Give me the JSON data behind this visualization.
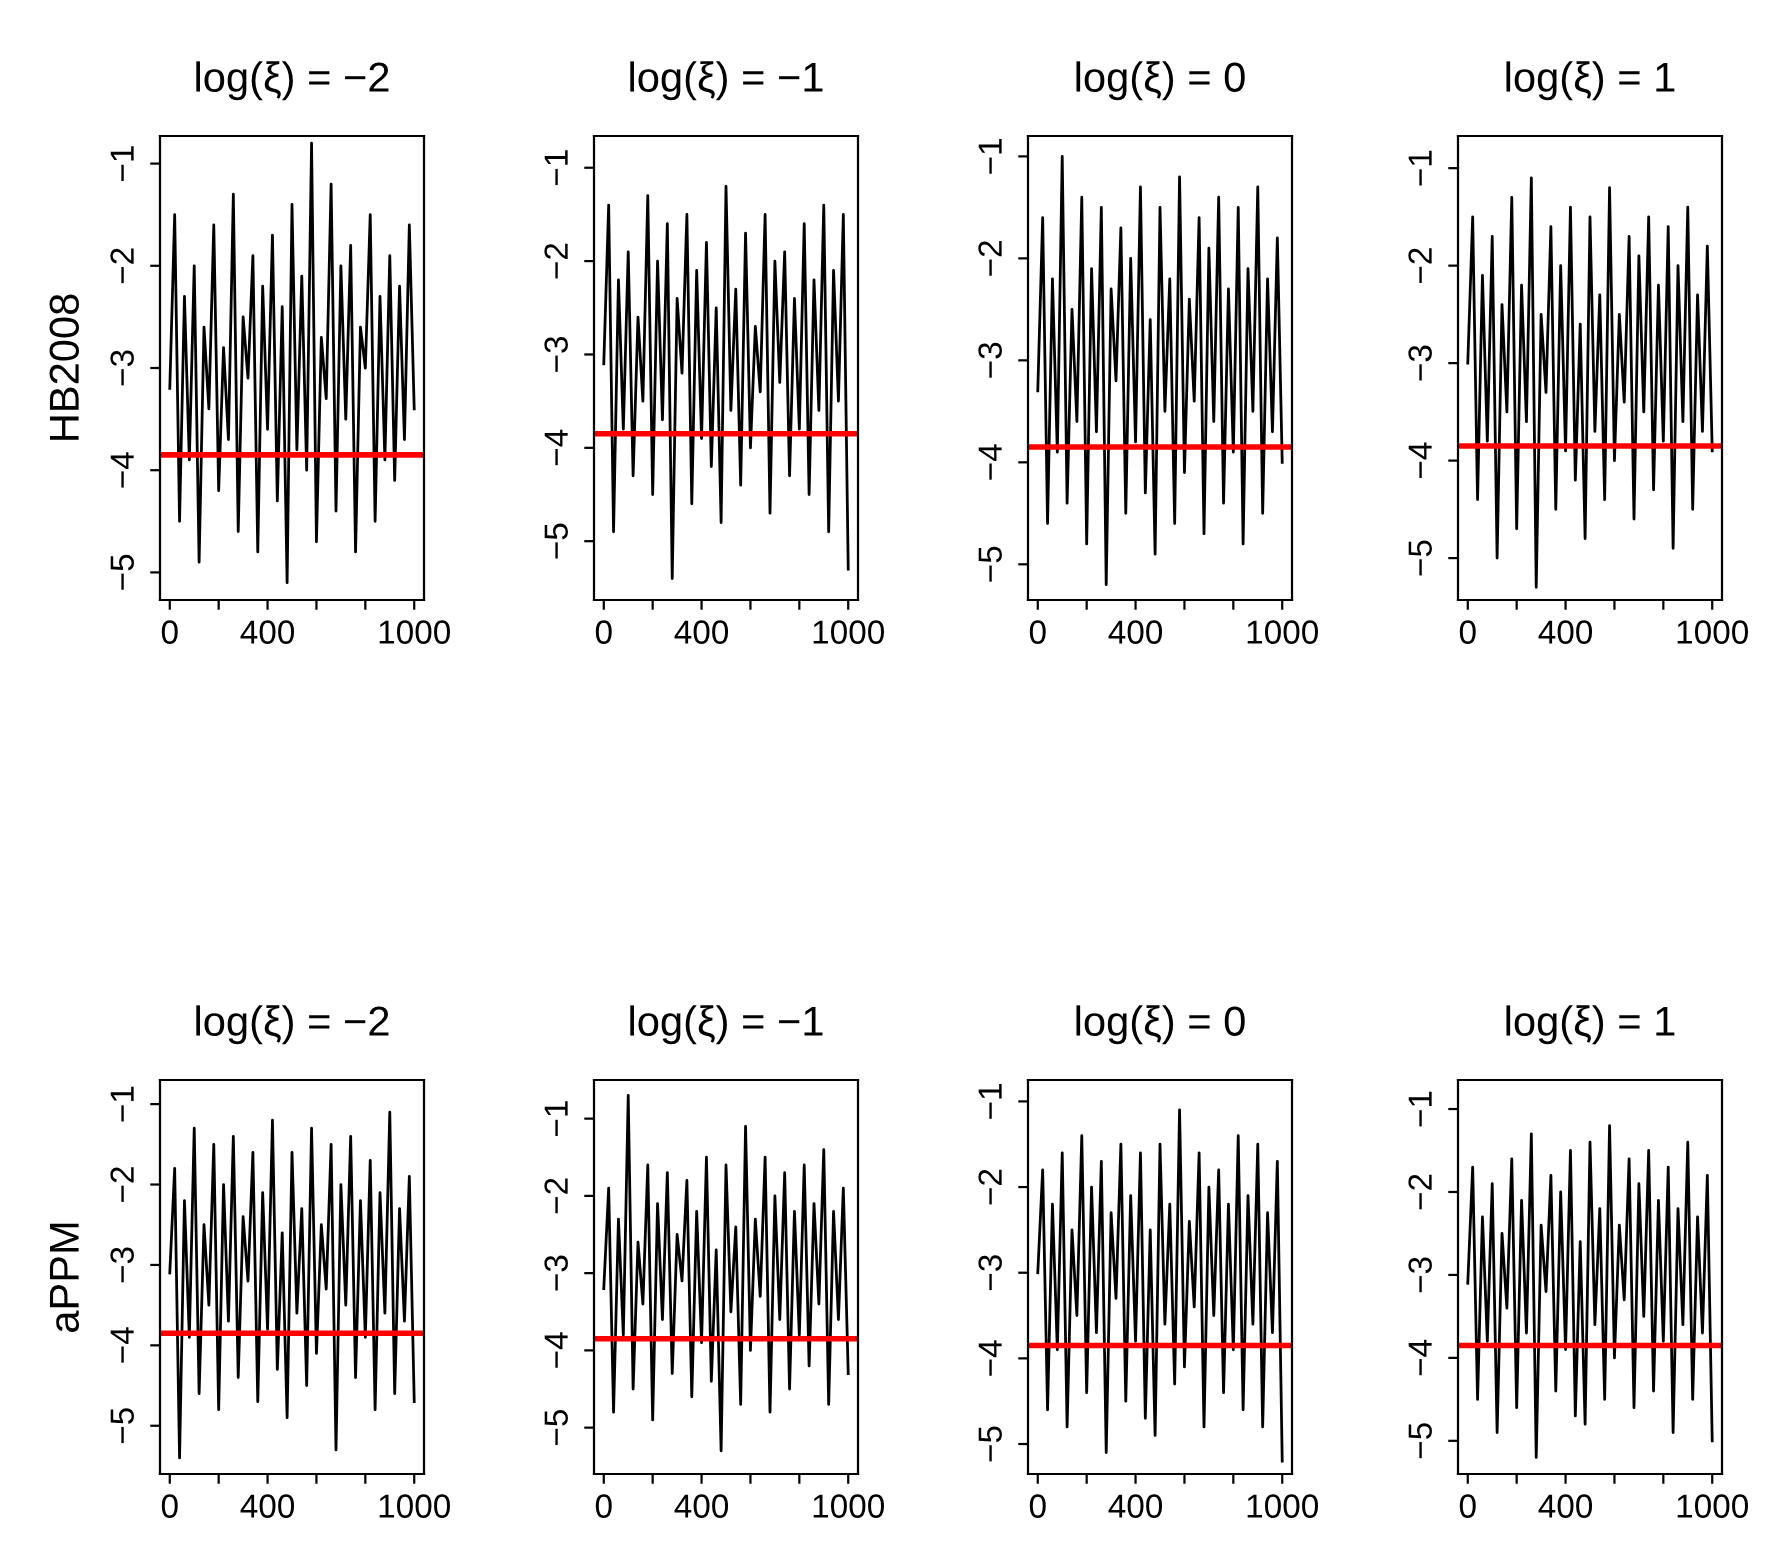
{
  "chart_data": [
    {
      "type": "line",
      "title": "log(ξ) = −2",
      "ylabel": "HB2008",
      "xlim": [
        -40,
        1040
      ],
      "ylim": [
        -5.27,
        -0.73
      ],
      "xticks": [
        0,
        {
          "value": 200,
          "label": null
        },
        400,
        {
          "value": 600,
          "label": null
        },
        {
          "value": 800,
          "label": null
        },
        1000
      ],
      "yticks": [
        -5,
        -4,
        -3,
        -2,
        -1
      ],
      "grid": false,
      "x": [
        0,
        20,
        40,
        60,
        80,
        100,
        120,
        140,
        160,
        180,
        200,
        220,
        240,
        260,
        280,
        300,
        320,
        340,
        360,
        380,
        400,
        420,
        440,
        460,
        480,
        500,
        520,
        540,
        560,
        580,
        600,
        620,
        640,
        660,
        680,
        700,
        720,
        740,
        760,
        780,
        800,
        820,
        840,
        860,
        880,
        900,
        920,
        940,
        960,
        980,
        1000
      ],
      "series": [
        {
          "color": "#000000",
          "values": [
            -3.2,
            -1.5,
            -4.5,
            -2.3,
            -3.9,
            -2.0,
            -4.9,
            -2.6,
            -3.4,
            -1.6,
            -4.2,
            -2.8,
            -3.7,
            -1.3,
            -4.6,
            -2.5,
            -3.1,
            -1.9,
            -4.8,
            -2.2,
            -3.6,
            -1.7,
            -4.3,
            -2.4,
            -5.1,
            -1.4,
            -3.8,
            -2.1,
            -4.0,
            -0.8,
            -4.7,
            -2.7,
            -3.3,
            -1.2,
            -4.4,
            -2.0,
            -3.5,
            -1.8,
            -4.8,
            -2.6,
            -3.0,
            -1.5,
            -4.5,
            -2.3,
            -3.9,
            -1.9,
            -4.1,
            -2.2,
            -3.7,
            -1.6,
            -3.4
          ]
        }
      ],
      "ref_lines": [
        {
          "axis": "y",
          "value": -3.85,
          "color": "#ff0000"
        }
      ]
    },
    {
      "type": "line",
      "title": "log(ξ) = −1",
      "xlim": [
        -40,
        1040
      ],
      "ylim": [
        -5.63,
        -0.66
      ],
      "xticks": [
        0,
        {
          "value": 200,
          "label": null
        },
        400,
        {
          "value": 600,
          "label": null
        },
        {
          "value": 800,
          "label": null
        },
        1000
      ],
      "yticks": [
        -5,
        -4,
        -3,
        -2,
        -1
      ],
      "grid": false,
      "x": [
        0,
        20,
        40,
        60,
        80,
        100,
        120,
        140,
        160,
        180,
        200,
        220,
        240,
        260,
        280,
        300,
        320,
        340,
        360,
        380,
        400,
        420,
        440,
        460,
        480,
        500,
        520,
        540,
        560,
        580,
        600,
        620,
        640,
        660,
        680,
        700,
        720,
        740,
        760,
        780,
        800,
        820,
        840,
        860,
        880,
        900,
        920,
        940,
        960,
        980,
        1000
      ],
      "series": [
        {
          "color": "#000000",
          "values": [
            -3.1,
            -1.4,
            -4.9,
            -2.2,
            -3.8,
            -1.9,
            -4.3,
            -2.6,
            -3.5,
            -1.3,
            -4.5,
            -2.0,
            -3.7,
            -1.6,
            -5.4,
            -2.4,
            -3.2,
            -1.5,
            -4.6,
            -2.1,
            -3.9,
            -1.8,
            -4.2,
            -2.5,
            -4.8,
            -1.2,
            -3.6,
            -2.3,
            -4.4,
            -1.7,
            -4.0,
            -2.7,
            -3.4,
            -1.5,
            -4.7,
            -2.0,
            -3.3,
            -1.9,
            -4.3,
            -2.4,
            -3.8,
            -1.6,
            -4.5,
            -2.2,
            -3.6,
            -1.4,
            -4.9,
            -2.1,
            -3.5,
            -1.5,
            -5.3
          ]
        }
      ],
      "ref_lines": [
        {
          "axis": "y",
          "value": -3.85,
          "color": "#ff0000"
        }
      ]
    },
    {
      "type": "line",
      "title": "log(ξ) = 0",
      "xlim": [
        -40,
        1040
      ],
      "ylim": [
        -5.35,
        -0.8
      ],
      "xticks": [
        0,
        {
          "value": 200,
          "label": null
        },
        400,
        {
          "value": 600,
          "label": null
        },
        {
          "value": 800,
          "label": null
        },
        1000
      ],
      "yticks": [
        -5,
        -4,
        -3,
        -2,
        -1
      ],
      "grid": false,
      "x": [
        0,
        20,
        40,
        60,
        80,
        100,
        120,
        140,
        160,
        180,
        200,
        220,
        240,
        260,
        280,
        300,
        320,
        340,
        360,
        380,
        400,
        420,
        440,
        460,
        480,
        500,
        520,
        540,
        560,
        580,
        600,
        620,
        640,
        660,
        680,
        700,
        720,
        740,
        760,
        780,
        800,
        820,
        840,
        860,
        880,
        900,
        920,
        940,
        960,
        980,
        1000
      ],
      "series": [
        {
          "color": "#000000",
          "values": [
            -3.3,
            -1.6,
            -4.6,
            -2.2,
            -3.9,
            -1.0,
            -4.4,
            -2.5,
            -3.6,
            -1.4,
            -4.8,
            -2.1,
            -3.7,
            -1.5,
            -5.2,
            -2.3,
            -3.2,
            -1.7,
            -4.5,
            -2.0,
            -3.8,
            -1.3,
            -4.3,
            -2.6,
            -4.9,
            -1.5,
            -3.5,
            -2.2,
            -4.6,
            -1.2,
            -4.1,
            -2.4,
            -3.4,
            -1.6,
            -4.7,
            -1.9,
            -3.6,
            -1.4,
            -4.4,
            -2.3,
            -3.9,
            -1.5,
            -4.8,
            -2.1,
            -3.5,
            -1.3,
            -4.5,
            -2.2,
            -3.7,
            -1.8,
            -4.0
          ]
        }
      ],
      "ref_lines": [
        {
          "axis": "y",
          "value": -3.85,
          "color": "#ff0000"
        }
      ]
    },
    {
      "type": "line",
      "title": "log(ξ) = 1",
      "xlim": [
        -40,
        1040
      ],
      "ylim": [
        -5.43,
        -0.67
      ],
      "xticks": [
        0,
        {
          "value": 200,
          "label": null
        },
        400,
        {
          "value": 600,
          "label": null
        },
        {
          "value": 800,
          "label": null
        },
        1000
      ],
      "yticks": [
        -5,
        -4,
        -3,
        -2,
        -1
      ],
      "grid": false,
      "x": [
        0,
        20,
        40,
        60,
        80,
        100,
        120,
        140,
        160,
        180,
        200,
        220,
        240,
        260,
        280,
        300,
        320,
        340,
        360,
        380,
        400,
        420,
        440,
        460,
        480,
        500,
        520,
        540,
        560,
        580,
        600,
        620,
        640,
        660,
        680,
        700,
        720,
        740,
        760,
        780,
        800,
        820,
        840,
        860,
        880,
        900,
        920,
        940,
        960,
        980,
        1000
      ],
      "series": [
        {
          "color": "#000000",
          "values": [
            -3.0,
            -1.5,
            -4.4,
            -2.1,
            -3.8,
            -1.7,
            -5.0,
            -2.4,
            -3.5,
            -1.3,
            -4.7,
            -2.2,
            -3.6,
            -1.1,
            -5.3,
            -2.5,
            -3.3,
            -1.6,
            -4.5,
            -2.0,
            -3.9,
            -1.4,
            -4.2,
            -2.6,
            -4.8,
            -1.5,
            -3.7,
            -2.3,
            -4.4,
            -1.2,
            -4.0,
            -2.5,
            -3.4,
            -1.7,
            -4.6,
            -1.9,
            -3.5,
            -1.5,
            -4.3,
            -2.2,
            -3.8,
            -1.6,
            -4.9,
            -2.0,
            -3.6,
            -1.4,
            -4.5,
            -2.3,
            -3.7,
            -1.8,
            -3.9
          ]
        }
      ],
      "ref_lines": [
        {
          "axis": "y",
          "value": -3.85,
          "color": "#ff0000"
        }
      ]
    },
    {
      "type": "line",
      "title": "log(ξ) = −2",
      "ylabel": "aPPM",
      "xlim": [
        -40,
        1040
      ],
      "ylim": [
        -5.6,
        -0.7
      ],
      "xticks": [
        0,
        {
          "value": 200,
          "label": null
        },
        400,
        {
          "value": 600,
          "label": null
        },
        {
          "value": 800,
          "label": null
        },
        1000
      ],
      "yticks": [
        -5,
        -4,
        -3,
        -2,
        -1
      ],
      "grid": false,
      "x": [
        0,
        20,
        40,
        60,
        80,
        100,
        120,
        140,
        160,
        180,
        200,
        220,
        240,
        260,
        280,
        300,
        320,
        340,
        360,
        380,
        400,
        420,
        440,
        460,
        480,
        500,
        520,
        540,
        560,
        580,
        600,
        620,
        640,
        660,
        680,
        700,
        720,
        740,
        760,
        780,
        800,
        820,
        840,
        860,
        880,
        900,
        920,
        940,
        960,
        980,
        1000
      ],
      "series": [
        {
          "color": "#000000",
          "values": [
            -3.1,
            -1.8,
            -5.4,
            -2.2,
            -3.9,
            -1.3,
            -4.6,
            -2.5,
            -3.5,
            -1.5,
            -4.8,
            -2.0,
            -3.7,
            -1.4,
            -4.4,
            -2.4,
            -3.2,
            -1.6,
            -4.7,
            -2.1,
            -3.8,
            -1.2,
            -4.3,
            -2.6,
            -4.9,
            -1.6,
            -3.6,
            -2.3,
            -4.5,
            -1.3,
            -4.1,
            -2.5,
            -3.3,
            -1.5,
            -5.3,
            -2.0,
            -3.5,
            -1.4,
            -4.4,
            -2.2,
            -3.9,
            -1.7,
            -4.8,
            -2.1,
            -3.6,
            -1.1,
            -4.6,
            -2.3,
            -3.7,
            -1.9,
            -4.7
          ]
        }
      ],
      "ref_lines": [
        {
          "axis": "y",
          "value": -3.85,
          "color": "#ff0000"
        }
      ]
    },
    {
      "type": "line",
      "title": "log(ξ) = −1",
      "xlim": [
        -40,
        1040
      ],
      "ylim": [
        -5.6,
        -0.5
      ],
      "xticks": [
        0,
        {
          "value": 200,
          "label": null
        },
        400,
        {
          "value": 600,
          "label": null
        },
        {
          "value": 800,
          "label": null
        },
        1000
      ],
      "yticks": [
        -5,
        -4,
        -3,
        -2,
        -1
      ],
      "grid": false,
      "x": [
        0,
        20,
        40,
        60,
        80,
        100,
        120,
        140,
        160,
        180,
        200,
        220,
        240,
        260,
        280,
        300,
        320,
        340,
        360,
        380,
        400,
        420,
        440,
        460,
        480,
        500,
        520,
        540,
        560,
        580,
        600,
        620,
        640,
        660,
        680,
        700,
        720,
        740,
        760,
        780,
        800,
        820,
        840,
        860,
        880,
        900,
        920,
        940,
        960,
        980,
        1000
      ],
      "series": [
        {
          "color": "#000000",
          "values": [
            -3.2,
            -1.9,
            -4.8,
            -2.3,
            -3.8,
            -0.7,
            -4.5,
            -2.6,
            -3.4,
            -1.6,
            -4.9,
            -2.1,
            -3.6,
            -1.7,
            -4.3,
            -2.5,
            -3.1,
            -1.8,
            -4.6,
            -2.2,
            -3.9,
            -1.5,
            -4.4,
            -2.7,
            -5.3,
            -1.6,
            -3.5,
            -2.4,
            -4.7,
            -1.1,
            -4.0,
            -2.3,
            -3.3,
            -1.5,
            -4.8,
            -2.0,
            -3.6,
            -1.7,
            -4.5,
            -2.2,
            -3.8,
            -1.6,
            -4.2,
            -2.1,
            -3.4,
            -1.4,
            -4.7,
            -2.2,
            -3.6,
            -1.9,
            -4.3
          ]
        }
      ],
      "ref_lines": [
        {
          "axis": "y",
          "value": -3.85,
          "color": "#ff0000"
        }
      ]
    },
    {
      "type": "line",
      "title": "log(ξ) = 0",
      "xlim": [
        -40,
        1040
      ],
      "ylim": [
        -5.35,
        -0.75
      ],
      "xticks": [
        0,
        {
          "value": 200,
          "label": null
        },
        400,
        {
          "value": 600,
          "label": null
        },
        {
          "value": 800,
          "label": null
        },
        1000
      ],
      "yticks": [
        -5,
        -4,
        -3,
        -2,
        -1
      ],
      "grid": false,
      "x": [
        0,
        20,
        40,
        60,
        80,
        100,
        120,
        140,
        160,
        180,
        200,
        220,
        240,
        260,
        280,
        300,
        320,
        340,
        360,
        380,
        400,
        420,
        440,
        460,
        480,
        500,
        520,
        540,
        560,
        580,
        600,
        620,
        640,
        660,
        680,
        700,
        720,
        740,
        760,
        780,
        800,
        820,
        840,
        860,
        880,
        900,
        920,
        940,
        960,
        980,
        1000
      ],
      "series": [
        {
          "color": "#000000",
          "values": [
            -3.0,
            -1.8,
            -4.6,
            -2.2,
            -3.9,
            -1.6,
            -4.8,
            -2.5,
            -3.5,
            -1.4,
            -4.4,
            -2.0,
            -3.7,
            -1.7,
            -5.1,
            -2.3,
            -3.3,
            -1.5,
            -4.5,
            -2.1,
            -3.8,
            -1.6,
            -4.7,
            -2.5,
            -4.9,
            -1.5,
            -3.6,
            -2.2,
            -4.3,
            -1.1,
            -4.1,
            -2.4,
            -3.4,
            -1.6,
            -4.8,
            -2.0,
            -3.5,
            -1.8,
            -4.4,
            -2.2,
            -3.9,
            -1.4,
            -4.6,
            -2.1,
            -3.6,
            -1.5,
            -4.8,
            -2.3,
            -3.7,
            -1.7,
            -5.2
          ]
        }
      ],
      "ref_lines": [
        {
          "axis": "y",
          "value": -3.85,
          "color": "#ff0000"
        }
      ]
    },
    {
      "type": "line",
      "title": "log(ξ) = 1",
      "xlim": [
        -40,
        1040
      ],
      "ylim": [
        -5.4,
        -0.65
      ],
      "xticks": [
        0,
        {
          "value": 200,
          "label": null
        },
        400,
        {
          "value": 600,
          "label": null
        },
        {
          "value": 800,
          "label": null
        },
        1000
      ],
      "yticks": [
        -5,
        -4,
        -3,
        -2,
        -1
      ],
      "grid": false,
      "x": [
        0,
        20,
        40,
        60,
        80,
        100,
        120,
        140,
        160,
        180,
        200,
        220,
        240,
        260,
        280,
        300,
        320,
        340,
        360,
        380,
        400,
        420,
        440,
        460,
        480,
        500,
        520,
        540,
        560,
        580,
        600,
        620,
        640,
        660,
        680,
        700,
        720,
        740,
        760,
        780,
        800,
        820,
        840,
        860,
        880,
        900,
        920,
        940,
        960,
        980,
        1000
      ],
      "series": [
        {
          "color": "#000000",
          "values": [
            -3.1,
            -1.7,
            -4.5,
            -2.3,
            -3.8,
            -1.9,
            -4.9,
            -2.5,
            -3.4,
            -1.6,
            -4.6,
            -2.1,
            -3.7,
            -1.3,
            -5.2,
            -2.4,
            -3.2,
            -1.8,
            -4.4,
            -2.0,
            -3.9,
            -1.5,
            -4.7,
            -2.6,
            -4.8,
            -1.4,
            -3.6,
            -2.2,
            -4.5,
            -1.2,
            -4.0,
            -2.4,
            -3.3,
            -1.6,
            -4.6,
            -1.9,
            -3.5,
            -1.5,
            -4.4,
            -2.1,
            -3.8,
            -1.7,
            -4.9,
            -2.2,
            -3.6,
            -1.4,
            -4.5,
            -2.3,
            -3.7,
            -1.8,
            -5.0
          ]
        }
      ],
      "ref_lines": [
        {
          "axis": "y",
          "value": -3.85,
          "color": "#ff0000"
        }
      ]
    }
  ]
}
